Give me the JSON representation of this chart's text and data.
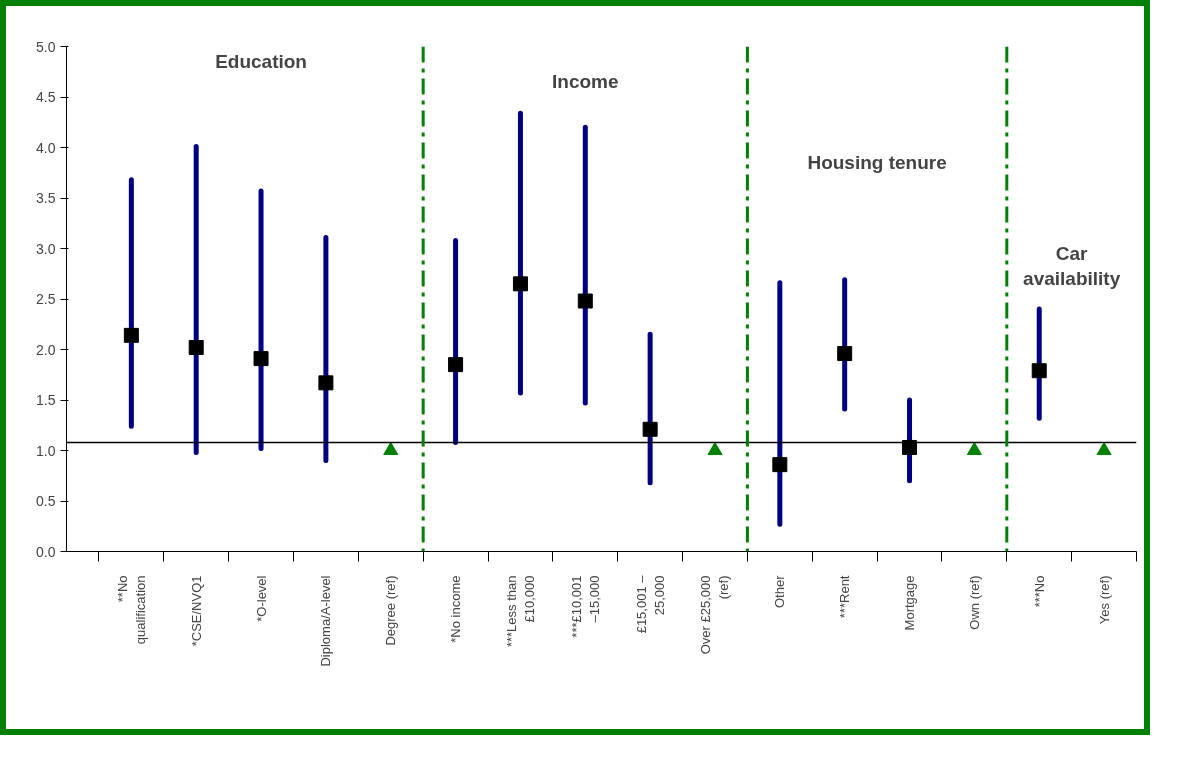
{
  "chart_data": {
    "type": "scatter",
    "categories": [
      "**No qualification",
      "*CSE/NVQ1",
      "*O-level",
      "Diploma/A-level",
      "Degree (ref)",
      "*No income",
      "***Less than £10,000",
      "***£10,001 –15,000",
      "£15,001 – 25,000",
      "Over £25,000 (ref)",
      "Other",
      "***Rent",
      "Mortgage",
      "Own (ref)",
      "***No",
      "Yes (ref)"
    ],
    "series": [
      {
        "color": "#000000",
        "marker": "square",
        "values": [
          2.14,
          2.02,
          1.91,
          1.67,
          null,
          1.85,
          2.65,
          2.48,
          1.21,
          null,
          0.86,
          1.96,
          1.03,
          null,
          1.79,
          null
        ],
        "errors": [
          [
            1.24,
            3.68
          ],
          [
            0.98,
            4.01
          ],
          [
            1.02,
            3.57
          ],
          [
            0.9,
            3.11
          ],
          null,
          [
            1.08,
            3.08
          ],
          [
            1.57,
            4.34
          ],
          [
            1.47,
            4.2
          ],
          [
            0.68,
            2.15
          ],
          null,
          [
            0.27,
            2.66
          ],
          [
            1.41,
            2.69
          ],
          [
            0.7,
            1.5
          ],
          null,
          [
            1.32,
            2.4
          ],
          null
        ]
      },
      {
        "color": "#008000",
        "marker": "triangle",
        "values": [
          null,
          null,
          null,
          null,
          1.0,
          null,
          null,
          null,
          null,
          1.0,
          null,
          null,
          null,
          1.0,
          null,
          1.0
        ]
      }
    ],
    "ylim": [
      0,
      5
    ],
    "yticks": [
      {
        "value": 0,
        "label": "0.0"
      },
      {
        "value": 0.5,
        "label": "0.5"
      },
      {
        "value": 1,
        "label": "1.0"
      },
      {
        "value": 1.5,
        "label": "1.5"
      },
      {
        "value": 2,
        "label": "2.0"
      },
      {
        "value": 2.5,
        "label": "2.5"
      },
      {
        "value": 3,
        "label": "3.0"
      },
      {
        "value": 3.5,
        "label": "3.5"
      },
      {
        "value": 4,
        "label": "4.0"
      },
      {
        "value": 4.5,
        "label": "4.5"
      },
      {
        "value": 5,
        "label": "5.0"
      }
    ],
    "ref_lines": [
      {
        "axis": "y",
        "value": 1.08,
        "color": "#000000",
        "line_style": "solid"
      }
    ],
    "annotations": [
      "Education",
      "Income",
      "Housing tenure",
      "Car availability"
    ],
    "grid": false
  }
}
